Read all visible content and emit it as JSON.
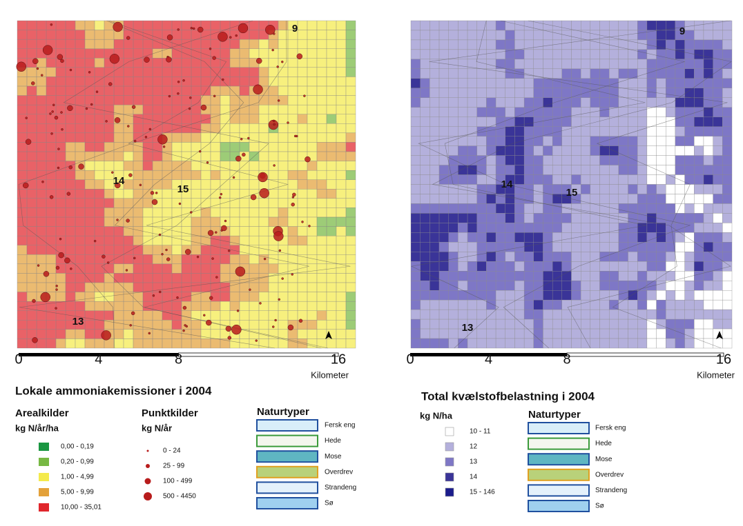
{
  "left": {
    "map_labels": [
      "9",
      "14",
      "15",
      "13"
    ],
    "scale": {
      "ticks": [
        "0",
        "4",
        "8",
        "16"
      ],
      "unit": "Kilometer"
    },
    "title": "Lokale ammoniakemissioner i 2004",
    "arealkilder": {
      "heading": "Arealkilder",
      "unit": "kg N/år/ha",
      "items": [
        {
          "label": "0,00 - 0,19",
          "color": "#1a9641"
        },
        {
          "label": "0,20 - 0,99",
          "color": "#77b843"
        },
        {
          "label": "1,00 - 4,99",
          "color": "#f4ea4c"
        },
        {
          "label": "5,00 - 9,99",
          "color": "#e3a13a"
        },
        {
          "label": "10,00 - 35,01",
          "color": "#e0262c"
        }
      ]
    },
    "punktkilder": {
      "heading": "Punktkilder",
      "unit": "kg N/år",
      "items": [
        "0 - 24",
        "25 - 99",
        "100 - 499",
        "500 - 4450"
      ],
      "color": "#b81c1c"
    },
    "naturtyper": {
      "heading": "Naturtyper",
      "items": [
        "Fersk eng",
        "Hede",
        "Mose",
        "Overdrev",
        "Strandeng",
        "Sø"
      ]
    }
  },
  "right": {
    "map_labels": [
      "9",
      "14",
      "15",
      "13"
    ],
    "scale": {
      "ticks": [
        "0",
        "4",
        "8",
        "16"
      ],
      "unit": "Kilometer"
    },
    "title": "Total kvælstofbelastning i 2004",
    "legend": {
      "unit": "kg N/ha",
      "items": [
        {
          "label": "10 - 11",
          "color": "#ffffff"
        },
        {
          "label": "12",
          "color": "#b4b0dc"
        },
        {
          "label": "13",
          "color": "#7e77c6"
        },
        {
          "label": "14",
          "color": "#3a3498"
        },
        {
          "label": "15 - 146",
          "color": "#1b1c8c"
        }
      ]
    },
    "naturtyper": {
      "heading": "Naturtyper",
      "items": [
        "Fersk eng",
        "Hede",
        "Mose",
        "Overdrev",
        "Strandeng",
        "Sø"
      ]
    }
  }
}
